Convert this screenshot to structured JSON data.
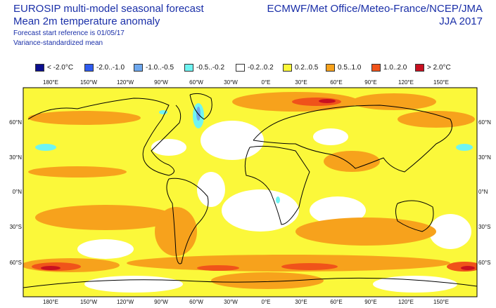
{
  "header": {
    "title_line1": "EUROSIP multi-model seasonal forecast",
    "title_line2": "Mean 2m temperature anomaly",
    "meta_line1": "Forecast start reference is 01/05/17",
    "meta_line2": "Variance-standardized mean",
    "source": "ECMWF/Met Office/Meteo-France/NCEP/JMA",
    "period": "JJA 2017"
  },
  "legend": [
    {
      "label": "< -2.0°C",
      "color": "#0b0f8f"
    },
    {
      "label": "-2.0..-1.0",
      "color": "#2f5bef"
    },
    {
      "label": "-1.0..-0.5",
      "color": "#6ea8ee"
    },
    {
      "label": "-0.5..-0.2",
      "color": "#6ff4f2"
    },
    {
      "label": "-0.2..0.2",
      "color": "#ffffff"
    },
    {
      "label": "0.2..0.5",
      "color": "#fbf83a"
    },
    {
      "label": "0.5..1.0",
      "color": "#f7a21c"
    },
    {
      "label": "1.0..2.0",
      "color": "#f0531a"
    },
    {
      "label": "> 2.0°C",
      "color": "#c81020"
    }
  ],
  "axes": {
    "lon_labels": [
      "180°E",
      "150°W",
      "120°W",
      "90°W",
      "60°W",
      "30°W",
      "0°E",
      "30°E",
      "60°E",
      "90°E",
      "120°E",
      "150°E"
    ],
    "lat_labels": [
      "60°N",
      "30°N",
      "0°N",
      "30°S",
      "60°S"
    ]
  }
}
